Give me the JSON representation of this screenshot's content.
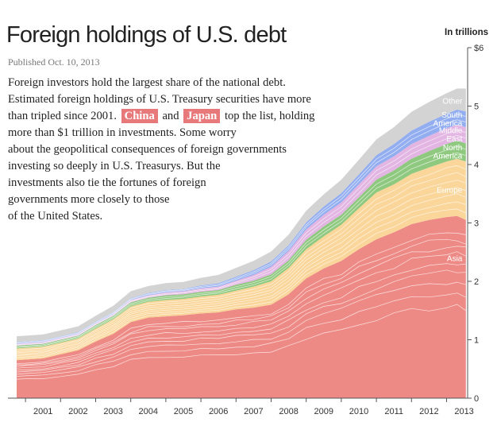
{
  "title": "Foreign holdings of U.S. debt",
  "published": "Published Oct. 10, 2013",
  "intro": {
    "line1": "Foreign investors hold the largest share of the national debt.",
    "line2": "Estimated foreign holdings of U.S. Treasury securities have more",
    "line3_before": "than tripled since 2001.",
    "china": "China",
    "line3_and": "and",
    "japan": "Japan",
    "line3_after": "top the list, holding",
    "line4": "more than $1 trillion in investments. Some worry",
    "line5": "about the geopolitical consequences of foreign governments",
    "line6": "investing so deeply in U.S. Treasurys. But the",
    "line7": "investments also tie the fortunes of foreign",
    "line8": "governments more closely to those",
    "line9": "of the United States."
  },
  "unit_label": "In trillions",
  "colors": {
    "Asia": "#ee8a86",
    "Europe": "#fbd69a",
    "North America": "#8ec97f",
    "Middle East": "#e2b5e2",
    "South America": "#93aef0",
    "Other": "#d3d3d3",
    "highlight": "#e8797a",
    "stream_line": "#ffffff"
  },
  "chart_data": {
    "type": "area",
    "stacked": true,
    "title": "",
    "xlabel": "",
    "ylabel": "In trillions",
    "xlim": [
      2000.5,
      2013.6
    ],
    "ylim": [
      0,
      6
    ],
    "yticks": [
      0,
      1,
      2,
      3,
      4,
      5,
      6
    ],
    "ytick_labels": [
      "0",
      "1",
      "2",
      "3",
      "4",
      "5",
      "$6"
    ],
    "xtick_labels": [
      "2001",
      "2002",
      "2003",
      "2004",
      "2005",
      "2006",
      "2007",
      "2008",
      "2009",
      "2010",
      "2011",
      "2012",
      "2013"
    ],
    "x": [
      2000.75,
      2001.0,
      2001.5,
      2002.0,
      2002.5,
      2003.0,
      2003.5,
      2004.0,
      2004.5,
      2005.0,
      2005.5,
      2006.0,
      2006.5,
      2007.0,
      2007.5,
      2008.0,
      2008.5,
      2009.0,
      2009.5,
      2010.0,
      2010.5,
      2011.0,
      2011.5,
      2012.0,
      2012.5,
      2013.0,
      2013.3,
      2013.55
    ],
    "series": [
      {
        "name": "Asia",
        "values": [
          0.65,
          0.66,
          0.68,
          0.75,
          0.82,
          0.97,
          1.1,
          1.3,
          1.38,
          1.4,
          1.42,
          1.45,
          1.47,
          1.52,
          1.55,
          1.6,
          1.78,
          2.05,
          2.22,
          2.35,
          2.55,
          2.72,
          2.84,
          2.98,
          3.05,
          3.1,
          3.12,
          3.05
        ]
      },
      {
        "name": "Europe",
        "values": [
          0.2,
          0.2,
          0.2,
          0.2,
          0.2,
          0.22,
          0.25,
          0.27,
          0.27,
          0.28,
          0.28,
          0.29,
          0.3,
          0.32,
          0.36,
          0.4,
          0.45,
          0.5,
          0.55,
          0.62,
          0.7,
          0.8,
          0.82,
          0.86,
          0.9,
          0.95,
          0.98,
          1.0
        ]
      },
      {
        "name": "North America",
        "values": [
          0.05,
          0.05,
          0.05,
          0.05,
          0.05,
          0.06,
          0.06,
          0.07,
          0.07,
          0.08,
          0.08,
          0.08,
          0.08,
          0.1,
          0.1,
          0.12,
          0.13,
          0.16,
          0.17,
          0.17,
          0.19,
          0.22,
          0.24,
          0.26,
          0.28,
          0.3,
          0.31,
          0.31
        ]
      },
      {
        "name": "Middle East",
        "values": [
          0.03,
          0.03,
          0.03,
          0.03,
          0.03,
          0.03,
          0.03,
          0.04,
          0.04,
          0.05,
          0.05,
          0.06,
          0.06,
          0.07,
          0.1,
          0.13,
          0.16,
          0.18,
          0.2,
          0.21,
          0.22,
          0.23,
          0.24,
          0.25,
          0.26,
          0.27,
          0.27,
          0.28
        ]
      },
      {
        "name": "South America",
        "values": [
          0.03,
          0.03,
          0.03,
          0.03,
          0.03,
          0.03,
          0.03,
          0.03,
          0.04,
          0.04,
          0.04,
          0.05,
          0.06,
          0.07,
          0.08,
          0.09,
          0.1,
          0.12,
          0.14,
          0.16,
          0.17,
          0.19,
          0.21,
          0.23,
          0.24,
          0.25,
          0.26,
          0.27
        ]
      },
      {
        "name": "Other",
        "values": [
          0.1,
          0.1,
          0.1,
          0.1,
          0.1,
          0.1,
          0.11,
          0.12,
          0.12,
          0.12,
          0.12,
          0.13,
          0.14,
          0.15,
          0.16,
          0.17,
          0.18,
          0.2,
          0.21,
          0.23,
          0.25,
          0.27,
          0.29,
          0.32,
          0.34,
          0.35,
          0.36,
          0.39
        ]
      }
    ],
    "stream_labels": [
      {
        "series": "Asia",
        "text": "Asia"
      },
      {
        "series": "Europe",
        "text": "Europe"
      },
      {
        "series": "North America",
        "text": "North\nAmerica"
      },
      {
        "series": "Middle East",
        "text": "Middle\nEast"
      },
      {
        "series": "South America",
        "text": "South\nAmerica"
      },
      {
        "series": "Other",
        "text": "Other"
      }
    ]
  }
}
